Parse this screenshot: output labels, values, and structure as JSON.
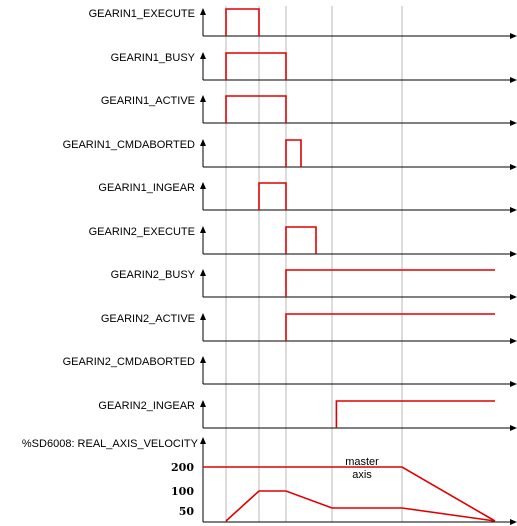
{
  "signals": [
    {
      "name": "GEARIN1_EXECUTE",
      "segments": [
        [
          1,
          2
        ]
      ]
    },
    {
      "name": "GEARIN1_BUSY",
      "segments": [
        [
          1,
          3
        ]
      ]
    },
    {
      "name": "GEARIN1_ACTIVE",
      "segments": [
        [
          1,
          3
        ]
      ]
    },
    {
      "name": "GEARIN1_CMDABORTED",
      "segments": [
        [
          3,
          3.5
        ]
      ]
    },
    {
      "name": "GEARIN1_INGEAR",
      "segments": [
        [
          2,
          3
        ]
      ]
    },
    {
      "name": "GEARIN2_EXECUTE",
      "segments": [
        [
          3,
          4
        ]
      ]
    },
    {
      "name": "GEARIN2_BUSY",
      "segments": [
        [
          3,
          "end"
        ]
      ]
    },
    {
      "name": "GEARIN2_ACTIVE",
      "segments": [
        [
          3,
          3.0001
        ],
        [
          3,
          "end"
        ]
      ]
    },
    {
      "name": "GEARIN2_CMDABORTED",
      "segments": []
    },
    {
      "name": "GEARIN2_INGEAR",
      "segments": [
        [
          4.6,
          "end"
        ]
      ]
    }
  ],
  "velocity": {
    "name": "%SD6008: REAL_AXIS_VELOCITY",
    "y_ticks": [
      "200",
      "100",
      "50"
    ],
    "annotation": [
      "master",
      "axis"
    ]
  },
  "colors": {
    "trace": "#e00000",
    "axis": "#000000",
    "guide": "#b8b8b8"
  }
}
